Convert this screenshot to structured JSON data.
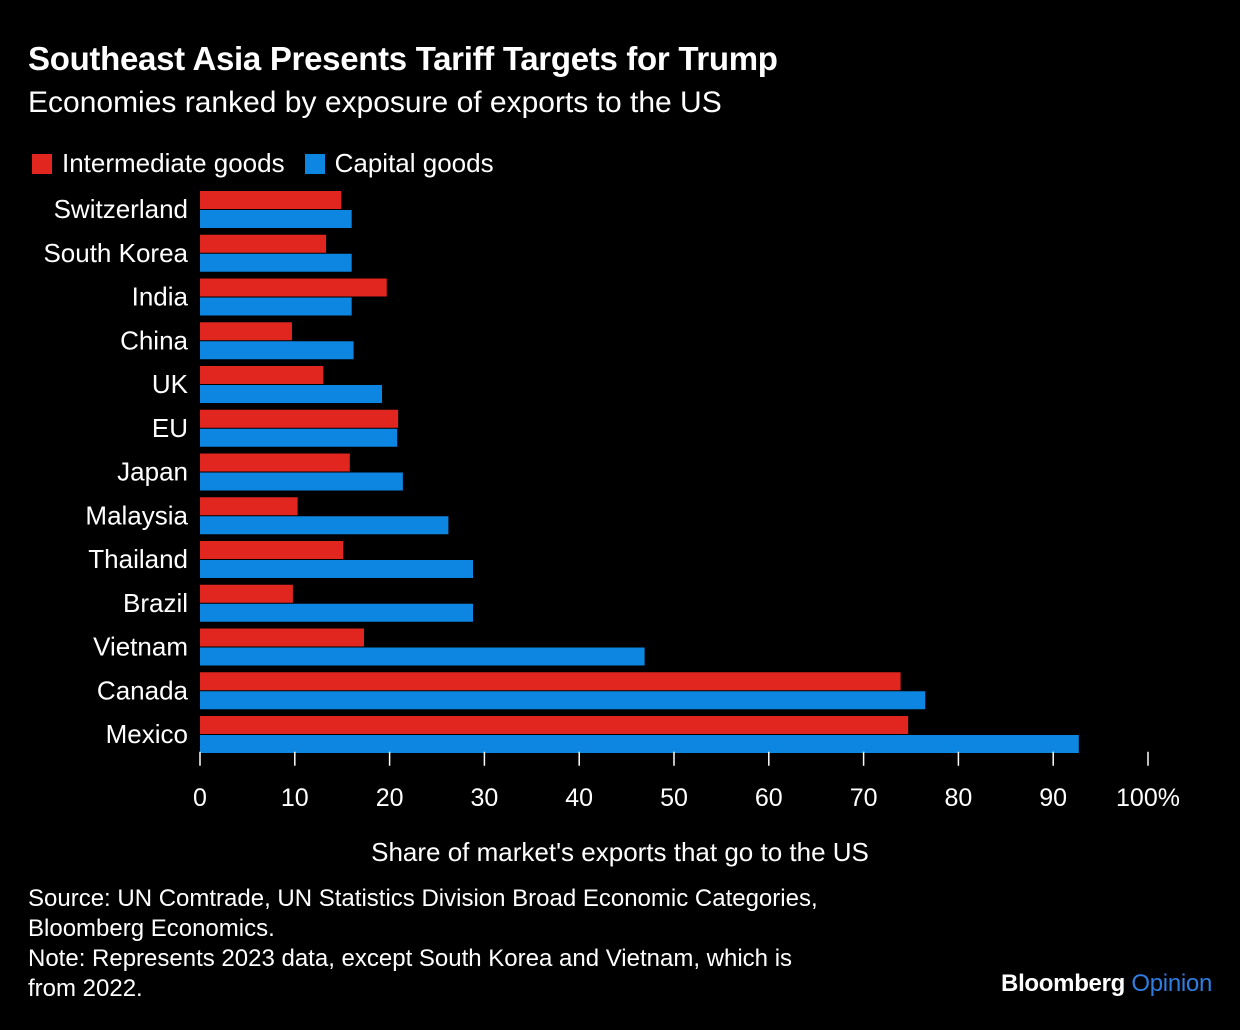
{
  "title": "Southeast Asia Presents Tariff Targets for Trump",
  "subtitle": "Economies ranked by exposure of exports to the US",
  "source_line1": "Source: UN Comtrade, UN Statistics Division Broad Economic Categories,",
  "source_line2": "Bloomberg Economics.",
  "note_line1": "Note: Represents 2023 data, except South Korea and Vietnam, which is",
  "note_line2": "from 2022.",
  "brand": {
    "name": "Bloomberg",
    "section": "Opinion"
  },
  "colors": {
    "intermediate": "#e0261f",
    "capital": "#0c86e0",
    "background": "#000000"
  },
  "chart_data": {
    "type": "bar",
    "orientation": "horizontal",
    "categories": [
      "Switzerland",
      "South Korea",
      "India",
      "China",
      "UK",
      "EU",
      "Japan",
      "Malaysia",
      "Thailand",
      "Brazil",
      "Vietnam",
      "Canada",
      "Mexico"
    ],
    "series": [
      {
        "name": "Intermediate goods",
        "values": [
          14.9,
          13.3,
          19.7,
          9.7,
          13.0,
          20.9,
          15.8,
          10.3,
          15.1,
          9.8,
          17.3,
          73.9,
          74.7
        ]
      },
      {
        "name": "Capital goods",
        "values": [
          16.0,
          16.0,
          16.0,
          16.2,
          19.2,
          20.8,
          21.4,
          26.2,
          28.8,
          28.8,
          46.9,
          76.5,
          92.7
        ]
      }
    ],
    "xlabel": "Share of market's exports that go to the US",
    "xticks": [
      "0",
      "10",
      "20",
      "30",
      "40",
      "50",
      "60",
      "70",
      "80",
      "90",
      "100%"
    ],
    "xlim": [
      0,
      100
    ],
    "legend_position": "top-left",
    "grid": false
  }
}
